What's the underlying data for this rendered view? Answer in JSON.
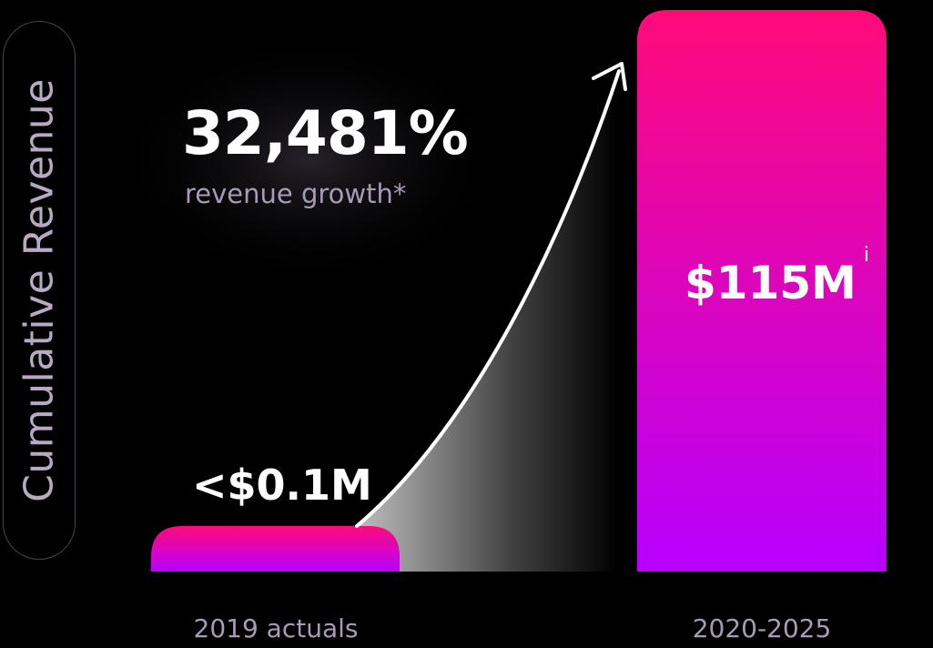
{
  "chart_data": {
    "type": "bar",
    "categories": [
      "2019 actuals",
      "2020-2025"
    ],
    "values": [
      0.1,
      115
    ],
    "value_labels": [
      "<$0.1M",
      "$115M"
    ],
    "value_label_footnote": "i",
    "ylabel": "Cumulative Revenue",
    "headline": "32,481%",
    "subheadline": "revenue growth*",
    "colors": {
      "bar_top": "#ff0a7a",
      "bar_bottom": "#b700ff",
      "background": "#000000",
      "arrow": "#ffffff"
    },
    "grid": false
  }
}
